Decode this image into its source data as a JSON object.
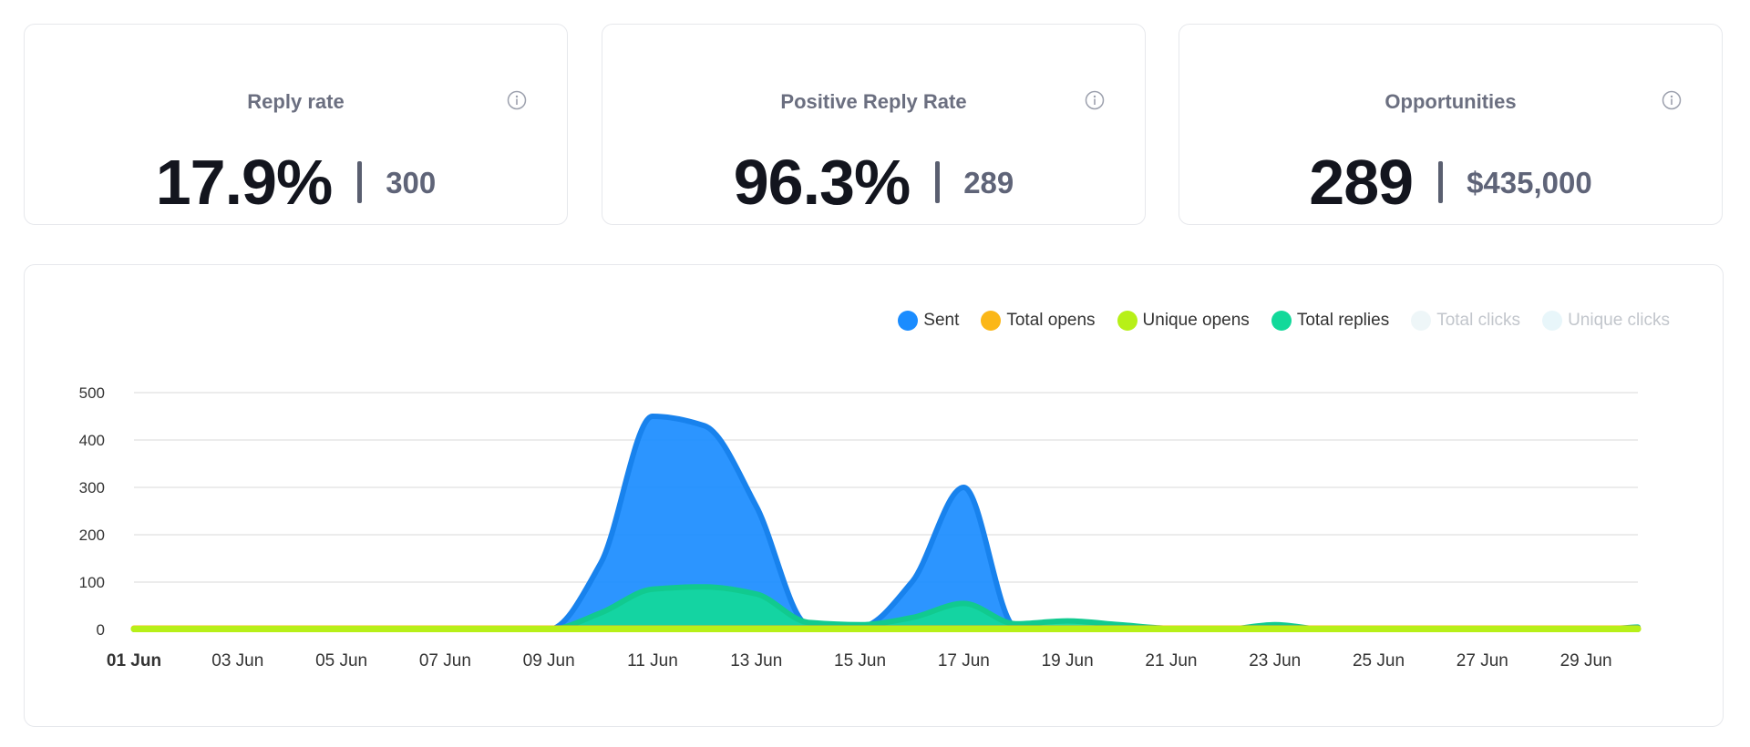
{
  "cards": [
    {
      "title": "Reply rate",
      "main": "17.9%",
      "sub": "300"
    },
    {
      "title": "Positive Reply Rate",
      "main": "96.3%",
      "sub": "289"
    },
    {
      "title": "Opportunities",
      "main": "289",
      "sub": "$435,000"
    }
  ],
  "legend": [
    {
      "label": "Sent",
      "color": "#1a8cff",
      "visible": true
    },
    {
      "label": "Total opens",
      "color": "#fbb718",
      "visible": true
    },
    {
      "label": "Unique opens",
      "color": "#b7f018",
      "visible": true
    },
    {
      "label": "Total replies",
      "color": "#12d99a",
      "visible": true
    },
    {
      "label": "Total clicks",
      "color": "#eef6f8",
      "visible": false
    },
    {
      "label": "Unique clicks",
      "color": "#e8f6fa",
      "visible": false
    }
  ],
  "chart_data": {
    "type": "area",
    "x": [
      "01 Jun",
      "02 Jun",
      "03 Jun",
      "04 Jun",
      "05 Jun",
      "06 Jun",
      "07 Jun",
      "08 Jun",
      "09 Jun",
      "10 Jun",
      "11 Jun",
      "12 Jun",
      "13 Jun",
      "14 Jun",
      "15 Jun",
      "16 Jun",
      "17 Jun",
      "18 Jun",
      "19 Jun",
      "20 Jun",
      "21 Jun",
      "22 Jun",
      "23 Jun",
      "24 Jun",
      "25 Jun",
      "26 Jun",
      "27 Jun",
      "28 Jun",
      "29 Jun",
      "30 Jun"
    ],
    "tick_labels": [
      "01 Jun",
      "03 Jun",
      "05 Jun",
      "07 Jun",
      "09 Jun",
      "11 Jun",
      "13 Jun",
      "15 Jun",
      "17 Jun",
      "19 Jun",
      "21 Jun",
      "23 Jun",
      "25 Jun",
      "27 Jun",
      "29 Jun"
    ],
    "highlighted_tick": "01 Jun",
    "ylim": [
      0,
      500
    ],
    "yticks": [
      0,
      100,
      200,
      300,
      400,
      500
    ],
    "grid": true,
    "legend_position": "top-right",
    "series": [
      {
        "name": "Sent",
        "color": "#1a8cff",
        "values": [
          0,
          0,
          0,
          0,
          0,
          0,
          0,
          0,
          0,
          140,
          450,
          430,
          260,
          10,
          5,
          100,
          300,
          5,
          0,
          0,
          0,
          0,
          0,
          0,
          0,
          0,
          0,
          0,
          0,
          0
        ]
      },
      {
        "name": "Total replies",
        "color": "#12d99a",
        "values": [
          0,
          0,
          0,
          0,
          0,
          0,
          0,
          0,
          0,
          35,
          85,
          90,
          75,
          15,
          10,
          25,
          55,
          12,
          18,
          10,
          2,
          0,
          10,
          0,
          0,
          0,
          0,
          0,
          0,
          5
        ]
      },
      {
        "name": "Total opens",
        "color": "#fbb718",
        "values": [
          2,
          2,
          2,
          2,
          2,
          2,
          2,
          2,
          2,
          2,
          2,
          2,
          2,
          2,
          2,
          2,
          2,
          2,
          2,
          2,
          2,
          2,
          2,
          2,
          2,
          2,
          2,
          2,
          2,
          2
        ]
      },
      {
        "name": "Unique opens",
        "color": "#b7f018",
        "values": [
          1,
          1,
          1,
          1,
          1,
          1,
          1,
          1,
          1,
          1,
          1,
          1,
          1,
          1,
          1,
          1,
          1,
          1,
          1,
          1,
          1,
          1,
          1,
          1,
          1,
          1,
          1,
          1,
          1,
          1
        ]
      }
    ]
  }
}
